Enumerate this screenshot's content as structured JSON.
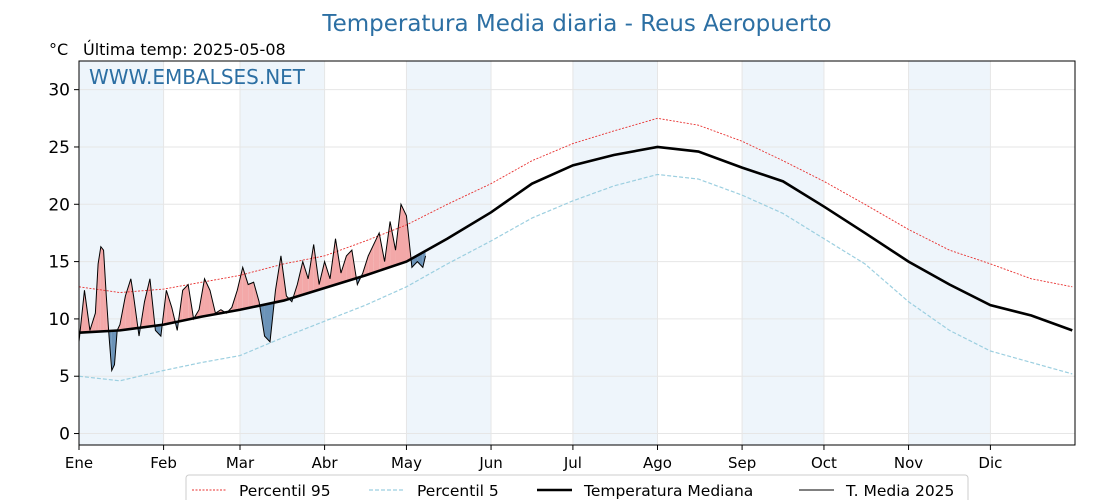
{
  "chart_data": {
    "type": "line",
    "title": "Temperatura Media diaria - Reus Aeropuerto",
    "unit": "°C",
    "last_temp_label": "Última temp: 2025-05-08",
    "watermark": "WWW.EMBALSES.NET",
    "ylim": [
      -1,
      32.5
    ],
    "xlim": [
      0,
      365
    ],
    "yticks": [
      0,
      5,
      10,
      15,
      20,
      25,
      30
    ],
    "months": [
      "Ene",
      "Feb",
      "Mar",
      "Abr",
      "May",
      "Jun",
      "Jul",
      "Ago",
      "Sep",
      "Oct",
      "Nov",
      "Dic"
    ],
    "month_start_days": [
      0,
      31,
      59,
      90,
      120,
      151,
      181,
      212,
      243,
      273,
      304,
      334
    ],
    "grid": true,
    "legend_position": "bottom",
    "colors": {
      "title": "#2c6fa3",
      "p95": "#e8302f",
      "p5": "#9ccfe0",
      "median": "#000000",
      "t2025": "#000000",
      "fill_above": "#f3a8a8",
      "fill_below": "#6b93b8",
      "band": "#eef5fb"
    },
    "series": [
      {
        "name": "Percentil 95",
        "x": [
          0,
          15,
          31,
          45,
          59,
          75,
          90,
          105,
          120,
          135,
          151,
          166,
          181,
          196,
          212,
          227,
          243,
          258,
          273,
          288,
          304,
          319,
          334,
          349,
          364
        ],
        "values": [
          12.8,
          12.3,
          12.6,
          13.2,
          13.8,
          14.8,
          15.5,
          16.8,
          18.2,
          20.0,
          21.8,
          23.8,
          25.3,
          26.4,
          27.5,
          26.9,
          25.5,
          23.8,
          22.0,
          20.0,
          17.8,
          16.0,
          14.8,
          13.5,
          12.8
        ]
      },
      {
        "name": "Percentil 5",
        "x": [
          0,
          15,
          31,
          45,
          59,
          75,
          90,
          105,
          120,
          135,
          151,
          166,
          181,
          196,
          212,
          227,
          243,
          258,
          273,
          288,
          304,
          319,
          334,
          349,
          364
        ],
        "values": [
          5.0,
          4.6,
          5.5,
          6.2,
          6.8,
          8.4,
          9.8,
          11.2,
          12.8,
          14.8,
          16.8,
          18.8,
          20.3,
          21.6,
          22.6,
          22.2,
          20.8,
          19.2,
          17.0,
          14.8,
          11.5,
          9.0,
          7.2,
          6.2,
          5.2
        ]
      },
      {
        "name": "Temperatura Mediana",
        "x": [
          0,
          15,
          31,
          45,
          59,
          75,
          90,
          105,
          120,
          135,
          151,
          166,
          181,
          196,
          212,
          227,
          243,
          258,
          273,
          288,
          304,
          319,
          334,
          349,
          364
        ],
        "values": [
          8.8,
          9.0,
          9.5,
          10.2,
          10.8,
          11.6,
          12.7,
          13.8,
          15.0,
          17.0,
          19.3,
          21.8,
          23.4,
          24.3,
          25.0,
          24.6,
          23.2,
          22.0,
          19.8,
          17.5,
          15.0,
          13.0,
          11.2,
          10.3,
          9.0
        ]
      },
      {
        "name": "T. Media 2025",
        "x": [
          0,
          2,
          4,
          6,
          7,
          8,
          9,
          10,
          11,
          12,
          13,
          14,
          15,
          17,
          19,
          20,
          22,
          24,
          26,
          28,
          30,
          32,
          34,
          36,
          38,
          40,
          42,
          44,
          46,
          48,
          50,
          52,
          54,
          56,
          58,
          60,
          62,
          64,
          66,
          68,
          70,
          72,
          74,
          76,
          78,
          80,
          82,
          84,
          86,
          88,
          90,
          92,
          94,
          96,
          98,
          100,
          102,
          104,
          106,
          108,
          110,
          112,
          114,
          116,
          118,
          120,
          122,
          124,
          126,
          127
        ],
        "values": [
          8.0,
          12.5,
          9.0,
          10.5,
          14.8,
          16.3,
          16.0,
          12.0,
          8.5,
          5.5,
          6.0,
          9.0,
          9.5,
          12.0,
          13.5,
          12.0,
          8.5,
          11.5,
          13.5,
          9.0,
          8.5,
          12.5,
          11.0,
          9.0,
          12.5,
          13.0,
          10.0,
          10.8,
          13.5,
          12.5,
          10.5,
          10.8,
          10.5,
          11.0,
          12.5,
          14.5,
          13.0,
          13.2,
          11.5,
          8.5,
          8.0,
          12.5,
          15.5,
          12.0,
          11.5,
          13.0,
          15.0,
          13.5,
          16.5,
          13.0,
          15.0,
          13.5,
          17.0,
          14.0,
          15.5,
          16.0,
          13.0,
          14.0,
          15.5,
          16.5,
          17.5,
          15.0,
          18.5,
          16.0,
          20.0,
          19.0,
          14.5,
          15.0,
          14.5,
          15.5
        ]
      }
    ]
  }
}
